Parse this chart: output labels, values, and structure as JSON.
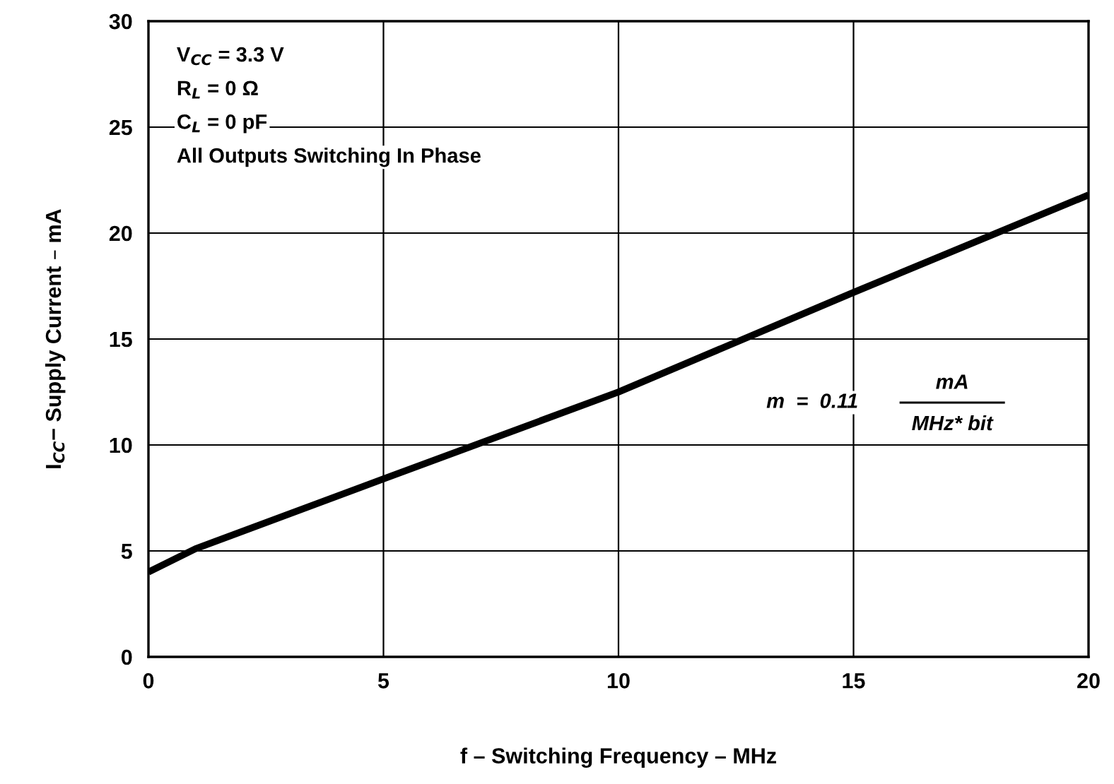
{
  "chart_data": {
    "type": "line",
    "xlabel": "f – Switching Frequency – MHz",
    "ylabel": "I$_{CC}$− Supply Current – mA",
    "x": [
      0,
      1,
      5,
      10,
      15,
      20
    ],
    "series": [
      {
        "color": "#000000",
        "values": [
          4.0,
          5.1,
          8.4,
          12.5,
          17.2,
          21.8
        ]
      }
    ],
    "xlim": [
      0,
      20
    ],
    "ylim": [
      0,
      30
    ],
    "xticks": [
      0,
      5,
      10,
      15,
      20
    ],
    "yticks": [
      0,
      5,
      10,
      15,
      20,
      25,
      30
    ],
    "grid": true,
    "annotations": [
      "V$_{CC}$ = 3.3 V",
      "R$_{L}$ = 0 Ω",
      "C$_{L}$ = 0 pF",
      "All Outputs Switching In Phase",
      "m  =  0.11",
      "mA",
      "MHz* bit"
    ]
  }
}
